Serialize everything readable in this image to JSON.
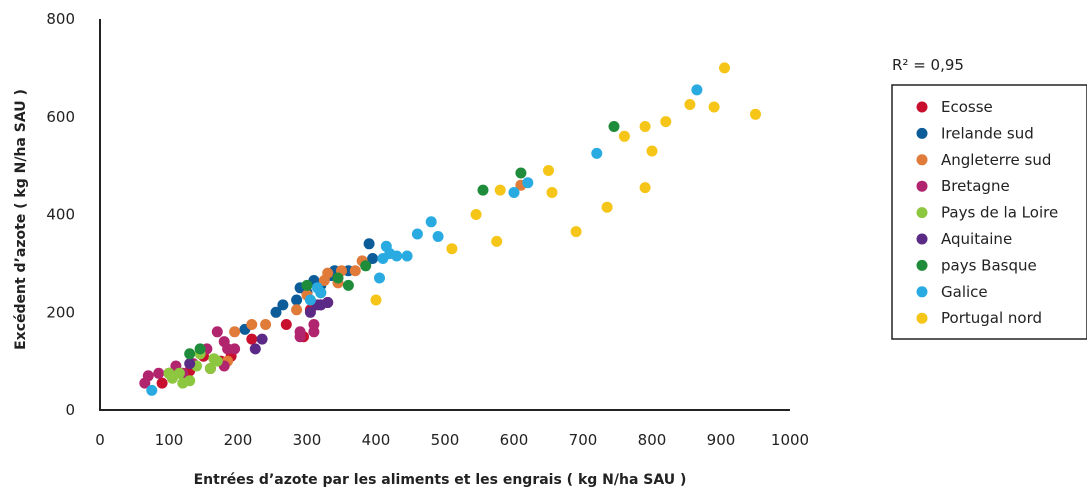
{
  "chart_data": {
    "type": "scatter",
    "title": "",
    "xlabel": "Entrées d’azote par les aliments et les engrais ( kg N/ha SAU )",
    "ylabel": "Excédent d’azote ( kg N/ha SAU )",
    "xlim": [
      0,
      1000
    ],
    "ylim": [
      0,
      800
    ],
    "xticks": [
      "0",
      "100",
      "200",
      "300",
      "400",
      "500",
      "600",
      "700",
      "800",
      "900",
      "1000"
    ],
    "yticks": [
      "0",
      "200",
      "400",
      "600",
      "800"
    ],
    "grid": false,
    "legend_position": "right",
    "annotation": "R² = 0,95",
    "series": [
      {
        "name": "Ecosse",
        "color": "#c8102e",
        "points": [
          [
            90,
            55
          ],
          [
            100,
            75
          ],
          [
            130,
            80
          ],
          [
            150,
            110
          ],
          [
            160,
            85
          ],
          [
            175,
            100
          ],
          [
            190,
            110
          ],
          [
            220,
            145
          ],
          [
            270,
            175
          ],
          [
            295,
            150
          ],
          [
            305,
            205
          ],
          [
            330,
            220
          ]
        ]
      },
      {
        "name": "Irelande sud",
        "color": "#0b5c99",
        "points": [
          [
            210,
            165
          ],
          [
            255,
            200
          ],
          [
            265,
            215
          ],
          [
            285,
            225
          ],
          [
            290,
            250
          ],
          [
            300,
            240
          ],
          [
            310,
            265
          ],
          [
            320,
            255
          ],
          [
            335,
            275
          ],
          [
            340,
            285
          ],
          [
            360,
            285
          ],
          [
            385,
            300
          ],
          [
            390,
            340
          ],
          [
            395,
            310
          ]
        ]
      },
      {
        "name": "Angleterre sud",
        "color": "#e07b39",
        "points": [
          [
            185,
            100
          ],
          [
            195,
            160
          ],
          [
            220,
            175
          ],
          [
            240,
            175
          ],
          [
            285,
            205
          ],
          [
            300,
            235
          ],
          [
            325,
            265
          ],
          [
            330,
            280
          ],
          [
            345,
            260
          ],
          [
            350,
            285
          ],
          [
            370,
            285
          ],
          [
            380,
            305
          ],
          [
            610,
            460
          ]
        ]
      },
      {
        "name": "Bretagne",
        "color": "#b0256e",
        "points": [
          [
            65,
            55
          ],
          [
            70,
            70
          ],
          [
            85,
            75
          ],
          [
            110,
            90
          ],
          [
            120,
            75
          ],
          [
            135,
            95
          ],
          [
            155,
            125
          ],
          [
            170,
            160
          ],
          [
            180,
            140
          ],
          [
            180,
            90
          ],
          [
            185,
            125
          ],
          [
            195,
            125
          ],
          [
            290,
            150
          ],
          [
            290,
            160
          ],
          [
            310,
            160
          ],
          [
            310,
            175
          ],
          [
            320,
            215
          ]
        ]
      },
      {
        "name": "Pays de la Loire",
        "color": "#8dc63f",
        "points": [
          [
            100,
            75
          ],
          [
            105,
            65
          ],
          [
            115,
            75
          ],
          [
            120,
            55
          ],
          [
            130,
            60
          ],
          [
            140,
            90
          ],
          [
            145,
            115
          ],
          [
            160,
            85
          ],
          [
            165,
            105
          ],
          [
            170,
            100
          ],
          [
            320,
            240
          ]
        ]
      },
      {
        "name": "Aquitaine",
        "color": "#5b2a86",
        "points": [
          [
            130,
            95
          ],
          [
            225,
            125
          ],
          [
            235,
            145
          ],
          [
            305,
            200
          ],
          [
            315,
            215
          ],
          [
            320,
            215
          ],
          [
            330,
            220
          ]
        ]
      },
      {
        "name": "pays Basque",
        "color": "#1e8c3a",
        "points": [
          [
            130,
            115
          ],
          [
            145,
            125
          ],
          [
            300,
            255
          ],
          [
            345,
            270
          ],
          [
            360,
            255
          ],
          [
            385,
            295
          ],
          [
            555,
            450
          ],
          [
            610,
            485
          ],
          [
            745,
            580
          ]
        ]
      },
      {
        "name": "Galice",
        "color": "#29abe2",
        "points": [
          [
            75,
            40
          ],
          [
            305,
            225
          ],
          [
            315,
            250
          ],
          [
            320,
            240
          ],
          [
            405,
            270
          ],
          [
            410,
            310
          ],
          [
            415,
            335
          ],
          [
            420,
            320
          ],
          [
            430,
            315
          ],
          [
            445,
            315
          ],
          [
            460,
            360
          ],
          [
            480,
            385
          ],
          [
            490,
            355
          ],
          [
            600,
            445
          ],
          [
            620,
            465
          ],
          [
            720,
            525
          ],
          [
            865,
            655
          ]
        ]
      },
      {
        "name": "Portugal nord",
        "color": "#f5c518",
        "points": [
          [
            400,
            225
          ],
          [
            510,
            330
          ],
          [
            545,
            400
          ],
          [
            575,
            345
          ],
          [
            580,
            450
          ],
          [
            650,
            490
          ],
          [
            655,
            445
          ],
          [
            690,
            365
          ],
          [
            735,
            415
          ],
          [
            760,
            560
          ],
          [
            790,
            455
          ],
          [
            790,
            580
          ],
          [
            800,
            530
          ],
          [
            820,
            590
          ],
          [
            855,
            625
          ],
          [
            890,
            620
          ],
          [
            905,
            700
          ],
          [
            950,
            605
          ]
        ]
      }
    ]
  }
}
